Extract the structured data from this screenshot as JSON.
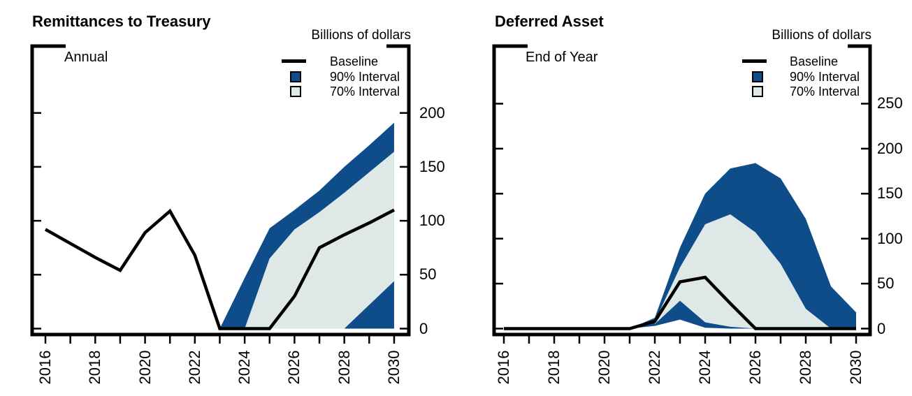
{
  "colors": {
    "band90": "#0f4d8a",
    "band70": "#dee9e7",
    "line": "#000000",
    "axis": "#000000",
    "background": "#ffffff"
  },
  "chart_data": [
    {
      "type": "area",
      "title": "Remittances to Treasury",
      "subtitle": "Annual",
      "unit_label": "Billions of dollars",
      "legend": [
        {
          "label": "Baseline",
          "swatch": "line"
        },
        {
          "label": "90% Interval",
          "swatch": "band90"
        },
        {
          "label": "70% Interval",
          "swatch": "band70"
        }
      ],
      "legend_position": "top-right",
      "grid": false,
      "x": [
        2016,
        2017,
        2018,
        2019,
        2020,
        2021,
        2022,
        2023,
        2024,
        2025,
        2026,
        2027,
        2028,
        2029,
        2030
      ],
      "x_tick_labels": [
        "2016",
        "2018",
        "2020",
        "2022",
        "2024",
        "2026",
        "2028",
        "2030"
      ],
      "y_ticks": [
        0,
        50,
        100,
        150,
        200
      ],
      "ylim": [
        0,
        262
      ],
      "series": [
        {
          "name": "Baseline",
          "type": "line",
          "x_start": 2016,
          "values": [
            92,
            79,
            66,
            54,
            89,
            109,
            68,
            0,
            0,
            0,
            30,
            75,
            87,
            98,
            110
          ]
        },
        {
          "name": "90% Interval",
          "type": "band",
          "x_start": 2023,
          "upper": [
            0,
            47,
            93,
            110,
            128,
            150,
            170,
            191
          ],
          "lower": [
            0,
            0,
            0,
            0,
            0,
            0,
            0,
            0
          ]
        },
        {
          "name": "70% Interval",
          "type": "band",
          "x_start": 2024,
          "upper": [
            0,
            65,
            92,
            108,
            126,
            145,
            164
          ],
          "lower": [
            0,
            0,
            0,
            0,
            0,
            22,
            44
          ]
        }
      ]
    },
    {
      "type": "area",
      "title": "Deferred Asset",
      "subtitle": "End of Year",
      "unit_label": "Billions of dollars",
      "legend": [
        {
          "label": "Baseline",
          "swatch": "line"
        },
        {
          "label": "90% Interval",
          "swatch": "band90"
        },
        {
          "label": "70% Interval",
          "swatch": "band70"
        }
      ],
      "legend_position": "top-right",
      "grid": false,
      "x": [
        2016,
        2017,
        2018,
        2019,
        2020,
        2021,
        2022,
        2023,
        2024,
        2025,
        2026,
        2027,
        2028,
        2029,
        2030
      ],
      "x_tick_labels": [
        "2016",
        "2018",
        "2020",
        "2022",
        "2024",
        "2026",
        "2028",
        "2030"
      ],
      "y_ticks": [
        0,
        50,
        100,
        150,
        200,
        250
      ],
      "ylim": [
        0,
        314
      ],
      "series": [
        {
          "name": "Baseline",
          "type": "line",
          "x_start": 2016,
          "values": [
            0,
            0,
            0,
            0,
            0,
            0,
            8,
            52,
            57,
            28,
            0,
            0,
            0,
            0,
            0
          ]
        },
        {
          "name": "90% Interval",
          "type": "band",
          "x_start": 2021,
          "upper": [
            0,
            12,
            90,
            150,
            178,
            184,
            167,
            122,
            47,
            18
          ],
          "lower": [
            0,
            3,
            10,
            1,
            0,
            0,
            0,
            0,
            0,
            0
          ]
        },
        {
          "name": "70% Interval",
          "type": "band",
          "x_start": 2022,
          "upper": [
            8,
            68,
            116,
            127,
            107,
            72,
            22,
            0
          ],
          "lower": [
            5,
            31,
            7,
            2,
            0,
            0,
            0,
            0
          ]
        }
      ]
    }
  ]
}
